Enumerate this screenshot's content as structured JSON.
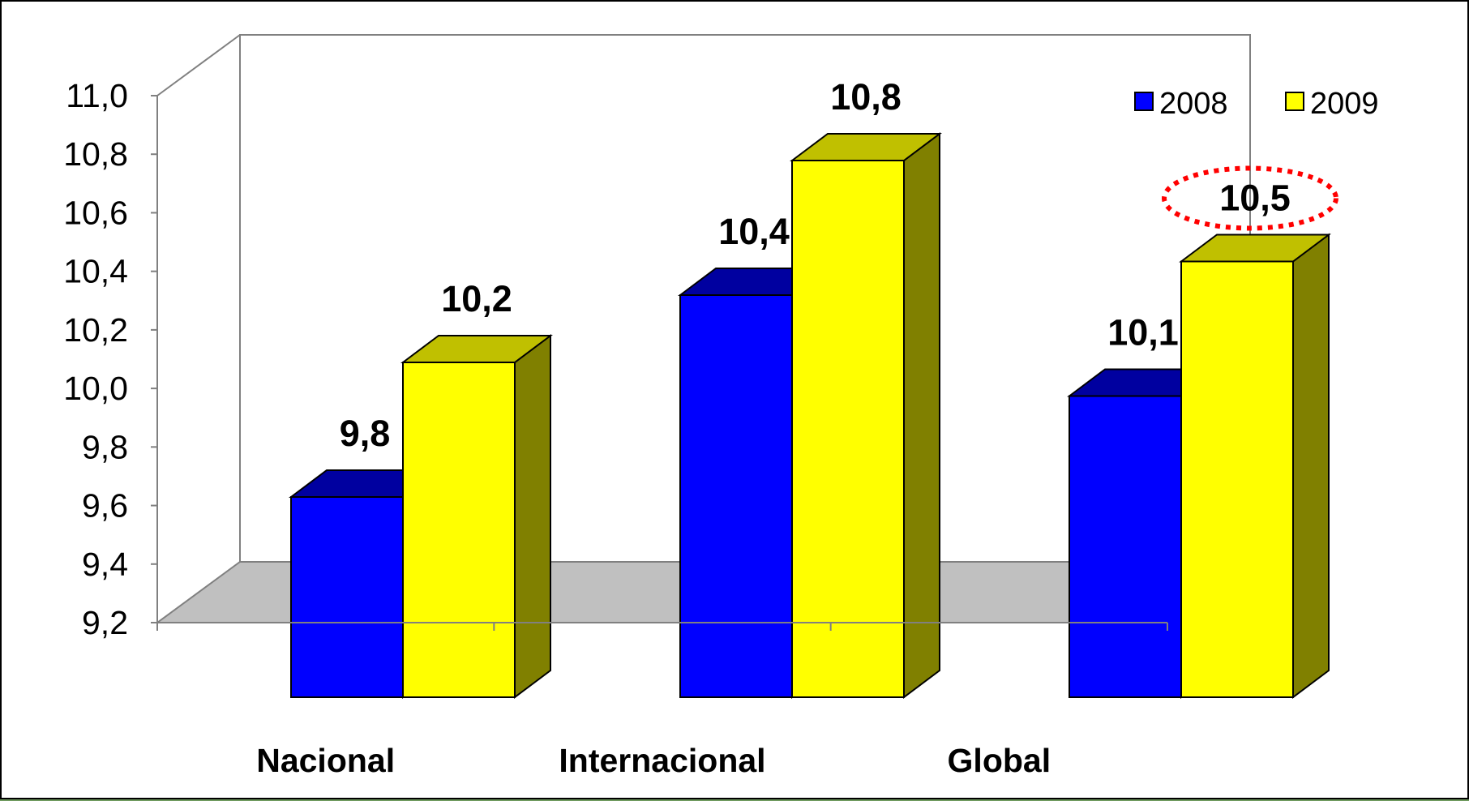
{
  "chart_data": {
    "type": "bar",
    "style": "3d-clustered-column",
    "categories": [
      "Nacional",
      "Internacional",
      "Global"
    ],
    "series": [
      {
        "name": "2008",
        "color": "#0000FF",
        "values": [
          9.8,
          10.4,
          10.1
        ],
        "labels": [
          "9,8",
          "10,4",
          "10,1"
        ]
      },
      {
        "name": "2009",
        "color": "#FFFF00",
        "values": [
          10.2,
          10.8,
          10.5
        ],
        "labels": [
          "10,2",
          "10,8",
          "10,5"
        ]
      }
    ],
    "yticks": [
      "9,2",
      "9,4",
      "9,6",
      "9,8",
      "10,0",
      "10,2",
      "10,4",
      "10,6",
      "10,8",
      "11,0"
    ],
    "ylim": [
      9.2,
      11.0
    ],
    "legend_position": "top-right",
    "highlighted": {
      "series": "2009",
      "category": "Global",
      "style": "red dotted ellipse"
    },
    "colors": {
      "floor": "#C0C0C0",
      "wall_line": "#808080",
      "s2008_side": "#000080",
      "s2008_top": "#0000A0",
      "s2009_side": "#808000",
      "s2009_top": "#C0C000",
      "highlight": "#FF0000"
    }
  }
}
